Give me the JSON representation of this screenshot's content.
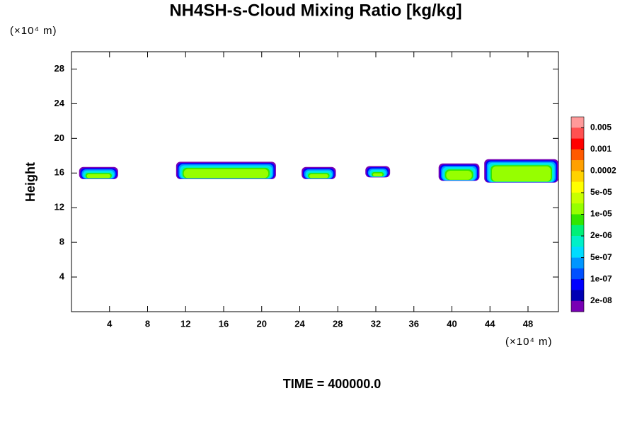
{
  "chart_data": {
    "type": "contour",
    "title": "NH4SH-s-Cloud Mixing Ratio [kg/kg]",
    "y_unit_label": "(×10⁴ m)",
    "x_unit_label": "(×10⁴ m)",
    "ylabel": "Height",
    "footer": "TIME = 400000.0",
    "xlim": [
      0,
      51.2
    ],
    "ylim": [
      0,
      30
    ],
    "xticks": [
      4,
      8,
      12,
      16,
      20,
      24,
      28,
      32,
      36,
      40,
      44,
      48
    ],
    "yticks": [
      4,
      8,
      12,
      16,
      20,
      24,
      28
    ],
    "clouds": [
      {
        "x": [
          0.8,
          4.9
        ],
        "y": [
          15.3,
          16.7
        ]
      },
      {
        "x": [
          11.0,
          21.5
        ],
        "y": [
          15.3,
          17.3
        ]
      },
      {
        "x": [
          24.2,
          27.8
        ],
        "y": [
          15.3,
          16.7
        ]
      },
      {
        "x": [
          30.9,
          33.5
        ],
        "y": [
          15.5,
          16.8
        ]
      },
      {
        "x": [
          38.6,
          42.9
        ],
        "y": [
          15.1,
          17.1
        ]
      },
      {
        "x": [
          43.4,
          51.2
        ],
        "y": [
          14.9,
          17.6
        ]
      }
    ],
    "colorbar": {
      "colors": [
        "#ff9a9a",
        "#ff5050",
        "#ff0000",
        "#ff5a00",
        "#ffa000",
        "#ffd200",
        "#ffff00",
        "#c8ff00",
        "#96ff00",
        "#32e600",
        "#00f078",
        "#00f0c8",
        "#00dcff",
        "#0096ff",
        "#0050ff",
        "#0000ff",
        "#0000b4",
        "#7800b4"
      ],
      "ticks": [
        0.005,
        0.001,
        0.0002,
        {
          "value": 5e-05,
          "label": "5e-05"
        },
        {
          "value": 1e-05,
          "label": "1e-05"
        },
        {
          "value": 2e-06,
          "label": "2e-06"
        },
        {
          "value": 5e-07,
          "label": "5e-07"
        },
        {
          "value": 1e-07,
          "label": "1e-07"
        },
        {
          "value": 2e-08,
          "label": "2e-08"
        }
      ]
    }
  }
}
